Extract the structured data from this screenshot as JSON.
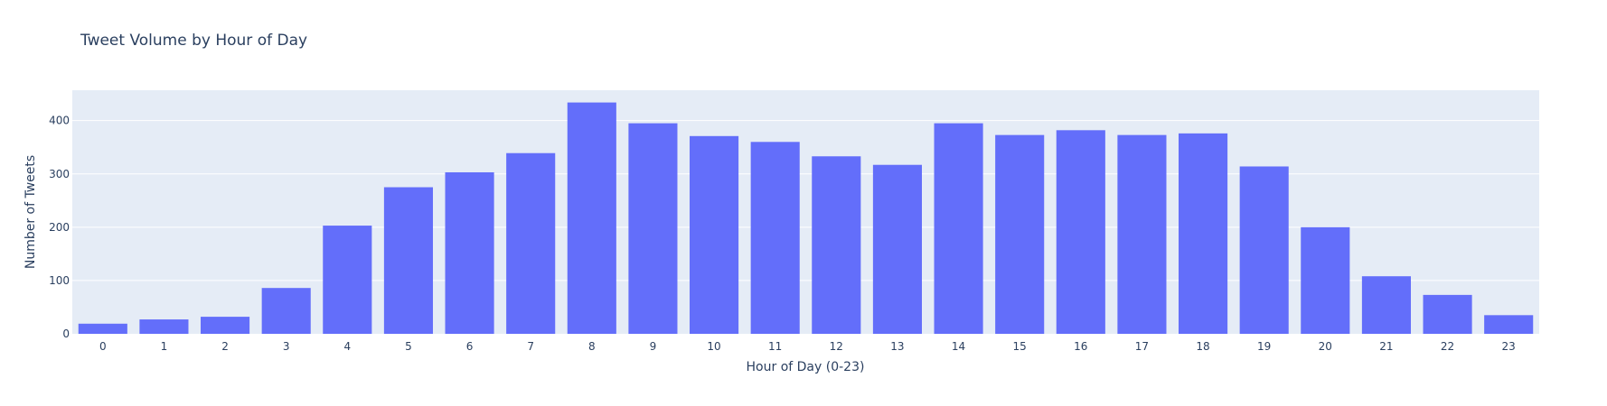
{
  "chart_data": {
    "type": "bar",
    "title": "Tweet Volume by Hour of Day",
    "xlabel": "Hour of Day (0-23)",
    "ylabel": "Number of Tweets",
    "categories": [
      "0",
      "1",
      "2",
      "3",
      "4",
      "5",
      "6",
      "7",
      "8",
      "9",
      "10",
      "11",
      "12",
      "13",
      "14",
      "15",
      "16",
      "17",
      "18",
      "19",
      "20",
      "21",
      "22",
      "23"
    ],
    "values": [
      19,
      27,
      32,
      86,
      203,
      275,
      303,
      339,
      434,
      395,
      371,
      360,
      333,
      317,
      395,
      373,
      382,
      373,
      376,
      314,
      200,
      108,
      73,
      35
    ],
    "ylim": [
      0,
      457
    ],
    "yticks": [
      0,
      100,
      200,
      300,
      400
    ],
    "grid": true,
    "legend": "none",
    "colors": {
      "bar": "#636efa",
      "plot_background": "#e5ecf6",
      "gridline": "#ffffff",
      "text": "#2a3f5f"
    }
  }
}
